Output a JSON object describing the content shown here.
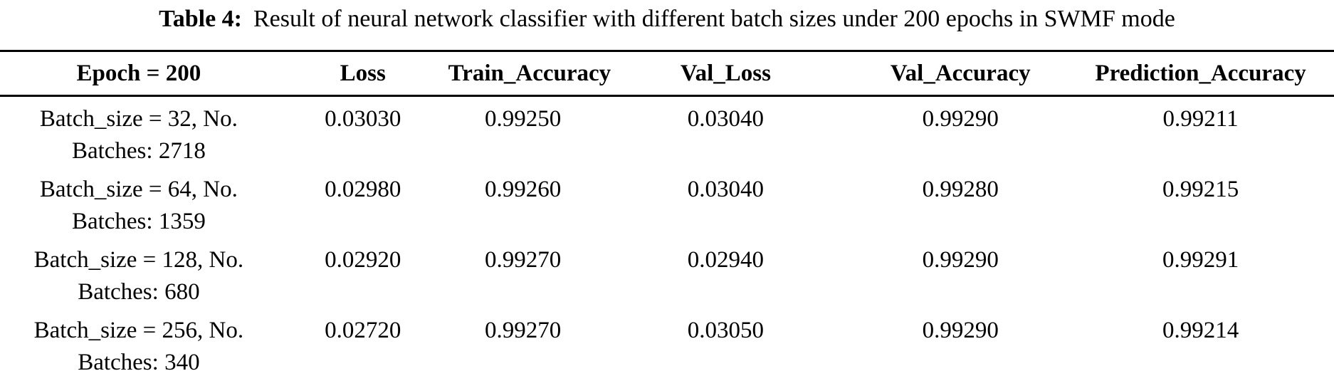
{
  "title": {
    "label": "Table 4:",
    "text": "Result of neural network classifier with different batch sizes under 200 epochs in SWMF mode"
  },
  "table": {
    "header": [
      "Epoch = 200",
      "Loss",
      "Train_Accuracy",
      "Val_Loss",
      "Val_Accuracy",
      "Prediction_Accuracy"
    ],
    "rows": [
      {
        "batch_line1": "Batch_size = 32, No.",
        "batch_line2": "Batches: 2718",
        "values": [
          "0.03030",
          "0.99250",
          "0.03040",
          "0.99290",
          "0.99211"
        ]
      },
      {
        "batch_line1": "Batch_size = 64, No.",
        "batch_line2": "Batches: 1359",
        "values": [
          "0.02980",
          "0.99260",
          "0.03040",
          "0.99280",
          "0.99215"
        ]
      },
      {
        "batch_line1": "Batch_size = 128, No.",
        "batch_line2": "Batches: 680",
        "values": [
          "0.02920",
          "0.99270",
          "0.02940",
          "0.99290",
          "0.99291"
        ]
      },
      {
        "batch_line1": "Batch_size = 256, No.",
        "batch_line2": "Batches: 340",
        "values": [
          "0.02720",
          "0.99270",
          "0.03050",
          "0.99290",
          "0.99214"
        ]
      }
    ]
  },
  "colors": {
    "text": "#000000",
    "background": "#ffffff",
    "rule": "#000000"
  }
}
